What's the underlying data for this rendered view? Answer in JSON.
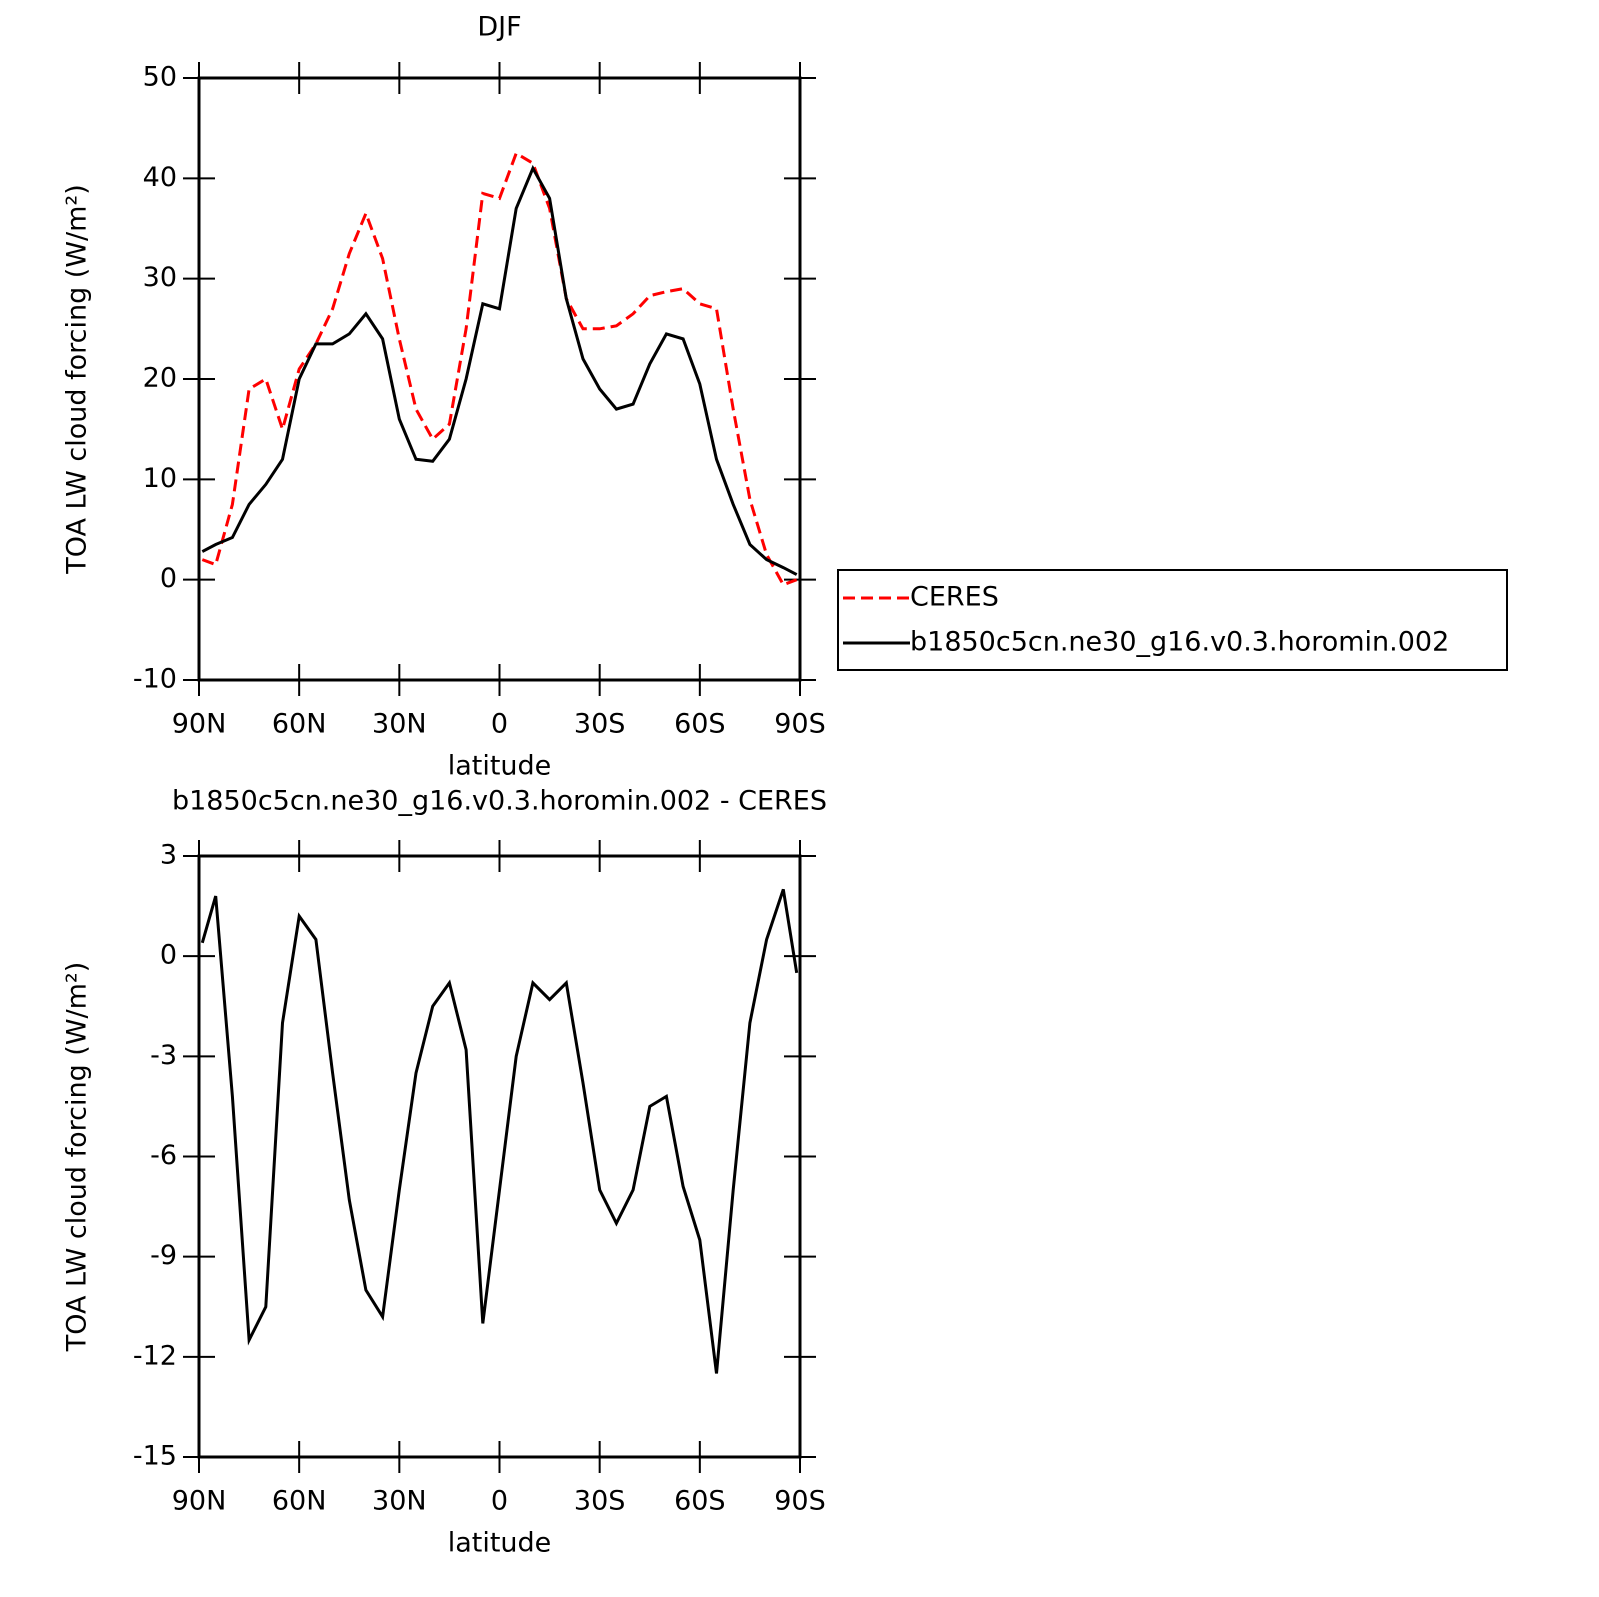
{
  "chart_data": [
    {
      "type": "line",
      "title": "DJF",
      "xlabel": "latitude",
      "ylabel": "TOA LW cloud forcing (W/m²)",
      "x": [
        89,
        85,
        80,
        75,
        70,
        65,
        60,
        55,
        50,
        45,
        40,
        35,
        30,
        25,
        20,
        15,
        10,
        5,
        0,
        -5,
        -10,
        -15,
        -20,
        -25,
        -30,
        -35,
        -40,
        -45,
        -50,
        -55,
        -60,
        -65,
        -70,
        -75,
        -80,
        -85,
        -89
      ],
      "series": [
        {
          "name": "CERES",
          "color": "#ff0000",
          "linestyle": "dashed",
          "values": [
            2,
            1.5,
            7.5,
            19,
            20,
            15,
            21,
            23.5,
            27,
            32.5,
            36.5,
            32,
            24,
            17,
            14,
            15.5,
            25,
            38.5,
            38,
            42.5,
            41.5,
            37,
            28,
            25,
            25,
            25.3,
            26.5,
            28.3,
            28.7,
            29,
            27.5,
            27,
            17,
            8,
            2.5,
            -0.5,
            0
          ]
        },
        {
          "name": "b1850c5cn.ne30_g16.v0.3.horomin.002",
          "color": "#000000",
          "linestyle": "solid",
          "values": [
            2.8,
            3.5,
            4.2,
            7.5,
            9.5,
            12,
            20,
            23.5,
            23.5,
            24.5,
            26.5,
            24,
            16,
            12,
            11.8,
            14,
            20,
            27.5,
            27,
            37,
            41,
            38,
            28,
            22,
            19,
            17,
            17.5,
            21.5,
            24.5,
            24,
            19.5,
            12,
            7.5,
            3.5,
            2,
            1.2,
            0.5
          ]
        }
      ],
      "xlim": [
        90,
        -90
      ],
      "xticks": [
        {
          "value": 90,
          "label": "90N"
        },
        {
          "value": 60,
          "label": "60N"
        },
        {
          "value": 30,
          "label": "30N"
        },
        0,
        {
          "value": -30,
          "label": "30S"
        },
        {
          "value": -60,
          "label": "60S"
        },
        {
          "value": -90,
          "label": "90S"
        }
      ],
      "ylim": [
        -10,
        50
      ],
      "yticks": [
        -10,
        0,
        10,
        20,
        30,
        40,
        50
      ],
      "legend": "right"
    },
    {
      "type": "line",
      "title": "b1850c5cn.ne30_g16.v0.3.horomin.002 - CERES",
      "xlabel": "latitude",
      "ylabel": "TOA LW cloud forcing (W/m²)",
      "x": [
        89,
        85,
        80,
        75,
        70,
        65,
        60,
        55,
        50,
        45,
        40,
        35,
        30,
        25,
        20,
        15,
        10,
        5,
        0,
        -5,
        -10,
        -15,
        -20,
        -25,
        -30,
        -35,
        -40,
        -45,
        -50,
        -55,
        -60,
        -65,
        -70,
        -75,
        -80,
        -85,
        -89
      ],
      "series": [
        {
          "color": "#000000",
          "linestyle": "solid",
          "values": [
            0.4,
            1.8,
            -4.2,
            -11.5,
            -10.5,
            -2,
            1.2,
            0.5,
            -3.5,
            -7.3,
            -10,
            -10.8,
            -7,
            -3.5,
            -1.5,
            -0.8,
            -2.8,
            -11,
            -7,
            -3,
            -0.8,
            -1.3,
            -0.8,
            -3.8,
            -7,
            -8,
            -7,
            -4.5,
            -4.2,
            -6.9,
            -8.5,
            -12.5,
            -7,
            -2,
            0.5,
            2,
            -0.5
          ]
        }
      ],
      "xlim": [
        90,
        -90
      ],
      "xticks": [
        {
          "value": 90,
          "label": "90N"
        },
        {
          "value": 60,
          "label": "60N"
        },
        {
          "value": 30,
          "label": "30N"
        },
        0,
        {
          "value": -30,
          "label": "30S"
        },
        {
          "value": -60,
          "label": "60S"
        },
        {
          "value": -90,
          "label": "90S"
        }
      ],
      "ylim": [
        -15,
        3
      ],
      "yticks": [
        -15,
        -12,
        -9,
        -6,
        -3,
        0,
        3
      ]
    }
  ]
}
